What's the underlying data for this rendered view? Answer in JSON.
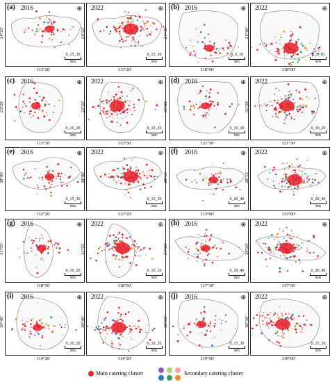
{
  "panels": [
    {
      "letter": "(a)",
      "left_year": "2016",
      "right_year": "2022",
      "ylabel": "24°25′",
      "xlabel": "113°20′",
      "scale": "0_15_30",
      "unit": "km"
    },
    {
      "letter": "(b)",
      "left_year": "2016",
      "right_year": "2022",
      "ylabel": "24°40′",
      "xlabel": "118°00′",
      "scale": "0_5_10",
      "unit": "km"
    },
    {
      "letter": "(c)",
      "left_year": "2016",
      "right_year": "2022",
      "ylabel": "23°20′",
      "xlabel": "113°30′",
      "scale": "0_10_20",
      "unit": "km"
    },
    {
      "letter": "(d)",
      "left_year": "2016",
      "right_year": "2022",
      "ylabel": "31°20′",
      "xlabel": "121°30′",
      "scale": "0_10_20",
      "unit": "km"
    },
    {
      "letter": "(e)",
      "left_year": "2016",
      "right_year": "2022",
      "ylabel": "38°00′",
      "xlabel": "112°20′",
      "scale": "0_15_30",
      "unit": "km"
    },
    {
      "letter": "(f)",
      "left_year": "2016",
      "right_year": "2022",
      "ylabel": "28°15′",
      "xlabel": "113°00′",
      "scale": "0_20_40",
      "unit": "km"
    },
    {
      "letter": "(g)",
      "left_year": "2016",
      "right_year": "2022",
      "ylabel": "31°55′",
      "xlabel": "118°50′",
      "scale": "0_10_20",
      "unit": "km"
    },
    {
      "letter": "(h)",
      "left_year": "2016",
      "right_year": "2022",
      "ylabel": "34°20′",
      "xlabel": "117°30′",
      "scale": "0_20_40",
      "unit": "km"
    },
    {
      "letter": "(i)",
      "left_year": "2016",
      "right_year": "2022",
      "ylabel": "30°40′",
      "xlabel": "114°20′",
      "scale": "0_10_20",
      "unit": "km"
    },
    {
      "letter": "(j)",
      "left_year": "2016",
      "right_year": "2022",
      "ylabel": "36°30′",
      "xlabel": "119°00′",
      "scale": "0_15_30",
      "unit": "km"
    }
  ],
  "north_symbol": "⊕",
  "legend": {
    "main_label": "Main catering cluster",
    "secondary_label": "Secondary catering cluster",
    "main_color": "#e8202a",
    "secondary_colors": [
      "#9b59b6",
      "#a8d86e",
      "#f4a6a6",
      "#2b7bba",
      "#2ca25f",
      "#f28c28"
    ]
  }
}
